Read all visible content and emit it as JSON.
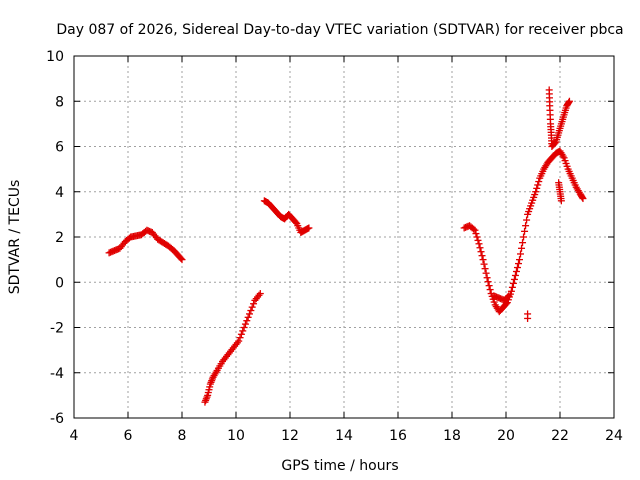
{
  "chart_data": {
    "type": "scatter",
    "title": "Day 087 of 2026, Sidereal Day-to-day VTEC variation (SDTVAR) for receiver pbca",
    "xlabel": "GPS time / hours",
    "ylabel": "SDTVAR / TECUs",
    "xlim": [
      4,
      24
    ],
    "ylim": [
      -6,
      10
    ],
    "xticks": [
      4,
      6,
      8,
      10,
      12,
      14,
      16,
      18,
      20,
      22,
      24
    ],
    "yticks": [
      -6,
      -4,
      -2,
      0,
      2,
      4,
      6,
      8,
      10
    ],
    "grid": true,
    "marker": "+",
    "series": [
      {
        "name": "pbca",
        "color": "#e00000",
        "points": [
          [
            5.3,
            1.3
          ],
          [
            5.5,
            1.4
          ],
          [
            5.7,
            1.5
          ],
          [
            5.9,
            1.8
          ],
          [
            6.1,
            2.0
          ],
          [
            6.3,
            2.05
          ],
          [
            6.5,
            2.1
          ],
          [
            6.7,
            2.3
          ],
          [
            6.9,
            2.2
          ],
          [
            7.1,
            1.9
          ],
          [
            7.3,
            1.75
          ],
          [
            7.5,
            1.6
          ],
          [
            7.7,
            1.4
          ],
          [
            7.85,
            1.2
          ],
          [
            8.0,
            1.0
          ],
          [
            8.85,
            -5.3
          ],
          [
            8.95,
            -5.0
          ],
          [
            9.05,
            -4.5
          ],
          [
            9.15,
            -4.2
          ],
          [
            9.3,
            -3.9
          ],
          [
            9.5,
            -3.5
          ],
          [
            9.7,
            -3.2
          ],
          [
            9.9,
            -2.9
          ],
          [
            10.1,
            -2.6
          ],
          [
            10.3,
            -2.0
          ],
          [
            10.5,
            -1.4
          ],
          [
            10.7,
            -0.8
          ],
          [
            10.9,
            -0.5
          ],
          [
            11.05,
            3.6
          ],
          [
            11.2,
            3.5
          ],
          [
            11.35,
            3.3
          ],
          [
            11.5,
            3.1
          ],
          [
            11.65,
            2.9
          ],
          [
            11.8,
            2.8
          ],
          [
            11.95,
            3.0
          ],
          [
            12.1,
            2.8
          ],
          [
            12.25,
            2.6
          ],
          [
            12.4,
            2.2
          ],
          [
            12.55,
            2.3
          ],
          [
            12.7,
            2.4
          ],
          [
            18.45,
            2.4
          ],
          [
            18.65,
            2.5
          ],
          [
            18.85,
            2.3
          ],
          [
            19.0,
            1.7
          ],
          [
            19.15,
            1.0
          ],
          [
            19.3,
            0.2
          ],
          [
            19.45,
            -0.5
          ],
          [
            19.6,
            -1.0
          ],
          [
            19.75,
            -1.3
          ],
          [
            19.9,
            -1.1
          ],
          [
            20.05,
            -0.9
          ],
          [
            20.2,
            -0.4
          ],
          [
            20.35,
            0.3
          ],
          [
            20.5,
            1.0
          ],
          [
            20.65,
            2.0
          ],
          [
            20.8,
            3.0
          ],
          [
            20.95,
            3.5
          ],
          [
            21.1,
            4.0
          ],
          [
            21.25,
            4.6
          ],
          [
            21.4,
            5.0
          ],
          [
            21.55,
            5.3
          ],
          [
            21.7,
            5.5
          ],
          [
            21.85,
            5.7
          ],
          [
            22.0,
            5.8
          ],
          [
            22.15,
            5.5
          ],
          [
            22.3,
            5.0
          ],
          [
            22.45,
            4.6
          ],
          [
            22.6,
            4.2
          ],
          [
            22.75,
            3.9
          ],
          [
            22.85,
            3.7
          ],
          [
            19.55,
            -0.6
          ],
          [
            19.75,
            -0.7
          ],
          [
            19.95,
            -0.8
          ],
          [
            20.1,
            -0.6
          ],
          [
            20.8,
            -1.4
          ],
          [
            20.8,
            -1.6
          ],
          [
            21.6,
            8.5
          ],
          [
            21.62,
            7.8
          ],
          [
            21.65,
            7.0
          ],
          [
            21.68,
            6.5
          ],
          [
            21.7,
            6.0
          ],
          [
            21.85,
            6.2
          ],
          [
            21.95,
            6.6
          ],
          [
            22.05,
            7.0
          ],
          [
            22.15,
            7.4
          ],
          [
            22.25,
            7.8
          ],
          [
            22.35,
            8.0
          ],
          [
            21.95,
            4.4
          ],
          [
            22.0,
            4.0
          ],
          [
            22.05,
            3.6
          ]
        ]
      }
    ]
  }
}
